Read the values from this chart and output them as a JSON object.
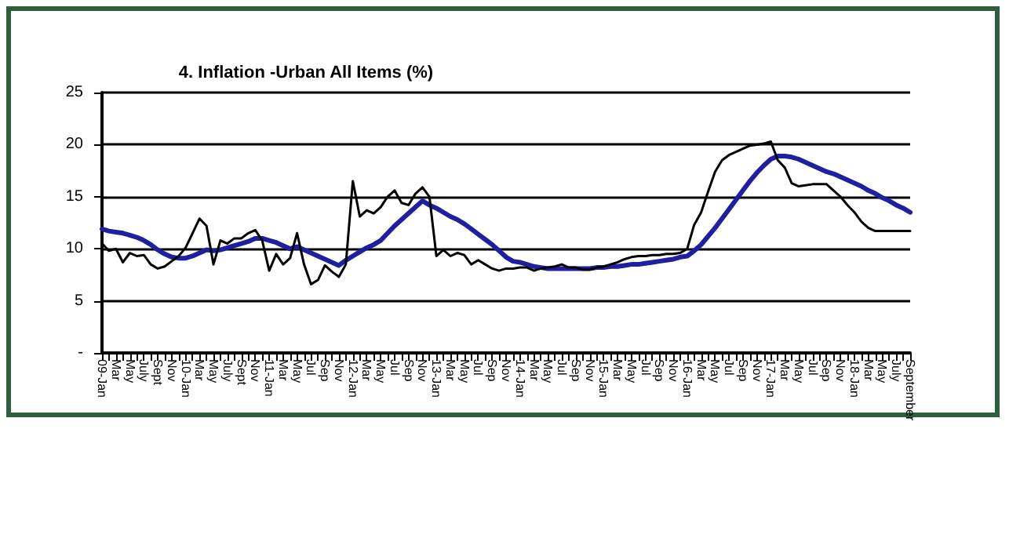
{
  "chart_data": {
    "type": "line",
    "title": "4. Inflation -Urban All Items (%)",
    "categories": [
      "09-Jan",
      null,
      "Mar",
      null,
      "May",
      null,
      "July",
      null,
      "Sept",
      null,
      "Nov",
      null,
      "10-Jan",
      null,
      "Mar",
      null,
      "May",
      null,
      "July",
      null,
      "Sept",
      null,
      "Nov",
      null,
      "11-Jan",
      null,
      "Mar",
      null,
      "May",
      null,
      "Jul",
      null,
      "Sep",
      null,
      "Nov",
      null,
      "12-Jan",
      null,
      "Mar",
      null,
      "May",
      null,
      "Jul",
      null,
      "Sep",
      null,
      "Nov",
      null,
      "13-Jan",
      null,
      "Mar",
      null,
      "May",
      null,
      "Jul",
      null,
      "Sep",
      null,
      "Nov",
      null,
      "14-Jan",
      null,
      "Mar",
      null,
      "May",
      null,
      "Jul",
      null,
      "Sep",
      null,
      "Nov",
      null,
      "15-Jan",
      null,
      "Mar",
      null,
      "May",
      null,
      "Jul",
      null,
      "Sep",
      null,
      "Nov",
      null,
      "16-Jan",
      null,
      "Mar",
      null,
      "May",
      null,
      "Jul",
      null,
      "Sep",
      null,
      "Nov",
      null,
      "17-Jan",
      null,
      "Mar",
      null,
      "May",
      null,
      "Jul",
      null,
      "Sep",
      null,
      "Nov",
      null,
      "18-Jan",
      null,
      "Mar",
      null,
      "May",
      null,
      "July",
      null,
      "September"
    ],
    "series": [
      {
        "color": "#000000",
        "values": [
          10.5,
          9.8,
          10.0,
          8.7,
          9.6,
          9.3,
          9.4,
          8.5,
          8.1,
          8.3,
          8.8,
          9.3,
          10.1,
          11.5,
          12.9,
          12.2,
          8.5,
          10.8,
          10.5,
          11.0,
          11.0,
          11.5,
          11.8,
          10.8,
          7.9,
          9.5,
          8.5,
          9.1,
          11.5,
          8.5,
          6.6,
          7.0,
          8.4,
          7.8,
          7.3,
          8.5,
          16.5,
          13.1,
          13.7,
          13.4,
          14.0,
          15.0,
          15.6,
          14.4,
          14.2,
          15.3,
          15.9,
          15.0,
          9.3,
          9.9,
          9.3,
          9.6,
          9.4,
          8.5,
          8.9,
          8.5,
          8.1,
          7.9,
          8.1,
          8.1,
          8.2,
          8.2,
          7.9,
          8.1,
          8.2,
          8.3,
          8.5,
          8.2,
          8.2,
          8.0,
          8.0,
          8.2,
          8.3,
          8.5,
          8.7,
          9.0,
          9.2,
          9.3,
          9.3,
          9.4,
          9.4,
          9.5,
          9.5,
          9.6,
          10.0,
          12.3,
          13.5,
          15.5,
          17.4,
          18.5,
          19.0,
          19.3,
          19.6,
          19.9,
          20.0,
          20.1,
          20.3,
          18.5,
          17.8,
          16.3,
          16.0,
          16.1,
          16.2,
          16.2,
          16.2,
          15.6,
          15.0,
          14.2,
          13.5,
          12.6,
          12.0,
          11.7,
          11.7,
          11.7,
          11.7,
          11.7,
          11.7
        ]
      },
      {
        "color": "#1f1fa0",
        "values": [
          11.9,
          11.7,
          11.6,
          11.5,
          11.3,
          11.1,
          10.8,
          10.4,
          9.9,
          9.5,
          9.2,
          9.1,
          9.1,
          9.3,
          9.6,
          9.9,
          9.8,
          9.9,
          10.1,
          10.3,
          10.5,
          10.7,
          11.0,
          11.0,
          10.8,
          10.6,
          10.3,
          10.0,
          10.2,
          9.9,
          9.6,
          9.3,
          9.0,
          8.7,
          8.4,
          8.9,
          9.3,
          9.7,
          10.1,
          10.4,
          10.8,
          11.5,
          12.2,
          12.8,
          13.4,
          14.0,
          14.6,
          14.2,
          13.9,
          13.5,
          13.1,
          12.8,
          12.4,
          11.9,
          11.4,
          10.9,
          10.4,
          9.8,
          9.2,
          8.8,
          8.7,
          8.5,
          8.3,
          8.2,
          8.1,
          8.1,
          8.1,
          8.1,
          8.1,
          8.1,
          8.1,
          8.2,
          8.2,
          8.3,
          8.3,
          8.4,
          8.5,
          8.5,
          8.6,
          8.7,
          8.8,
          8.9,
          9.0,
          9.2,
          9.3,
          9.8,
          10.4,
          11.2,
          12.0,
          12.9,
          13.8,
          14.7,
          15.6,
          16.5,
          17.3,
          18.0,
          18.6,
          18.9,
          18.9,
          18.8,
          18.6,
          18.3,
          18.0,
          17.7,
          17.4,
          17.2,
          16.9,
          16.6,
          16.3,
          16.0,
          15.6,
          15.3,
          14.9,
          14.6,
          14.2,
          13.9,
          13.5
        ]
      }
    ],
    "ylim": [
      0,
      25
    ],
    "yticks": [
      {
        "value": 0,
        "label": "-"
      },
      5,
      10,
      15,
      20,
      25
    ],
    "grid": "y",
    "marker": "none",
    "line_style": "solid"
  }
}
